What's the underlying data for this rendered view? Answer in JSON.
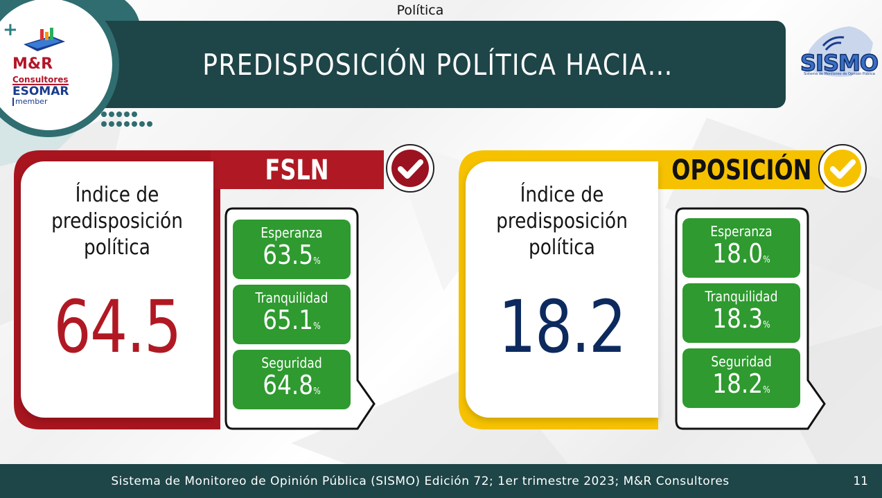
{
  "header": {
    "section": "Política",
    "title": "PREDISPOSICIÓN POLÍTICA HACIA…"
  },
  "logos": {
    "mr_name": "M&R",
    "mr_sub": "Consultores",
    "esomar": "ESOMAR",
    "esomar_member": "member",
    "sismo": "SISMO",
    "sismo_sub": "Sistema de Monitoreo de Opinión Pública"
  },
  "panels": [
    {
      "tab_label": "FSLN",
      "heading_line1": "Índice de",
      "heading_line2": "predisposición",
      "heading_line3": "política",
      "index_value": "64.5",
      "metrics": [
        {
          "label": "Esperanza",
          "value": "63.5",
          "unit": "%"
        },
        {
          "label": "Tranquilidad",
          "value": "65.1",
          "unit": "%"
        },
        {
          "label": "Seguridad",
          "value": "64.8",
          "unit": "%"
        }
      ],
      "accent_color": "#b01923",
      "value_color": "#b01923",
      "check_icon": "check-circle-icon"
    },
    {
      "tab_label": "OPOSICIÓN",
      "heading_line1": "Índice de",
      "heading_line2": "predisposición",
      "heading_line3": "política",
      "index_value": "18.2",
      "metrics": [
        {
          "label": "Esperanza",
          "value": "18.0",
          "unit": "%"
        },
        {
          "label": "Tranquilidad",
          "value": "18.3",
          "unit": "%"
        },
        {
          "label": "Seguridad",
          "value": "18.2",
          "unit": "%"
        }
      ],
      "accent_color": "#f6c200",
      "value_color": "#0d2a5e",
      "check_icon": "check-circle-icon"
    }
  ],
  "metric_color": "#2e9a2f",
  "footer": {
    "source": "Sistema de Monitoreo de Opinión Pública (SISMO) Edición 72; 1er trimestre 2023; M&R Consultores",
    "page_number": "11"
  }
}
